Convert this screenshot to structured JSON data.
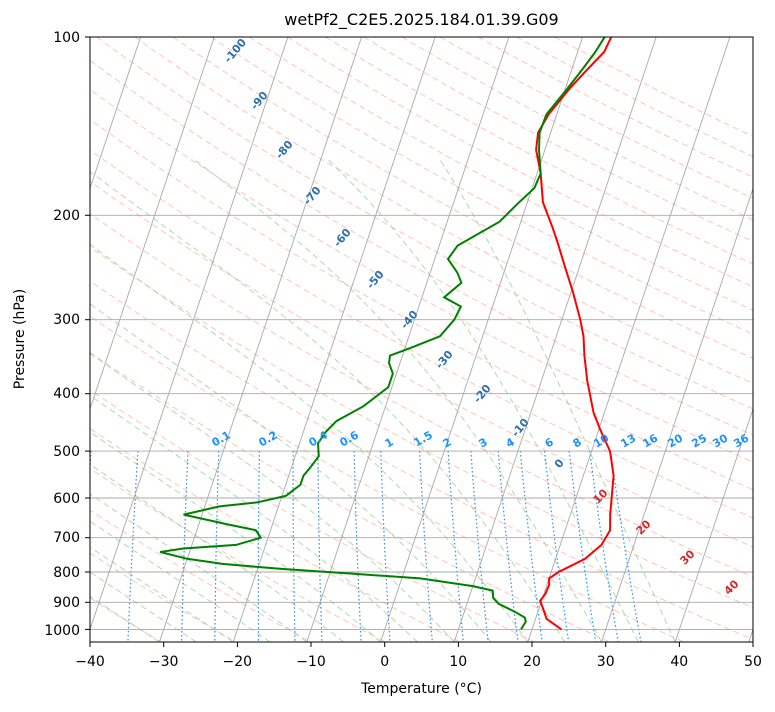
{
  "colors": {
    "temperature": "#ff0000",
    "dewpoint": "#008000",
    "isotherm": "#a9a9a9",
    "isobar": "#a9a9a9",
    "dry_adiabat": "#ff9f80",
    "moist_adiabat": "#90c990",
    "mixing_ratio": "#1e90ff",
    "dry_label": "#2b6fb0",
    "moist_label": "#d62728"
  },
  "chart_data": {
    "type": "line",
    "title": "wetPf2_C2E5.2025.184.01.39.G09",
    "xlabel": "Temperature (°C)",
    "ylabel": "Pressure (hPa)",
    "xlim": [
      -40,
      50
    ],
    "ylim": [
      1050,
      100
    ],
    "y_scale": "log",
    "grid": true,
    "x_ticks": [
      "−40",
      "−30",
      "−20",
      "−10",
      "0",
      "10",
      "20",
      "30",
      "40",
      "50"
    ],
    "y_ticks": [
      "100",
      "200",
      "300",
      "400",
      "500",
      "600",
      "700",
      "800",
      "900",
      "1000"
    ],
    "series": [
      {
        "key": "temperature",
        "points": [
          [
            24,
            1000
          ],
          [
            21.5,
            960
          ],
          [
            20.5,
            920
          ],
          [
            19.8,
            895
          ],
          [
            20.2,
            870
          ],
          [
            20.3,
            840
          ],
          [
            20,
            820
          ],
          [
            21,
            800
          ],
          [
            24,
            760
          ],
          [
            25.6,
            720
          ],
          [
            26.1,
            680
          ],
          [
            25.4,
            640
          ],
          [
            24.7,
            590
          ],
          [
            24.1,
            550
          ],
          [
            22.5,
            500
          ],
          [
            20.2,
            460
          ],
          [
            18.5,
            430
          ],
          [
            16.2,
            380
          ],
          [
            14.7,
            345
          ],
          [
            13.7,
            320
          ],
          [
            12.5,
            300
          ],
          [
            10.3,
            270
          ],
          [
            8.1,
            245
          ],
          [
            5.9,
            222
          ],
          [
            4.6,
            210
          ],
          [
            2.1,
            190
          ],
          [
            0.5,
            170
          ],
          [
            -1.2,
            155
          ],
          [
            -1.7,
            145
          ],
          [
            -1.1,
            135
          ],
          [
            0.6,
            122
          ],
          [
            2.2,
            113
          ],
          [
            3.6,
            106
          ],
          [
            3.9,
            100
          ]
        ]
      },
      {
        "key": "dewpoint",
        "points": [
          [
            18.5,
            1000
          ],
          [
            18.8,
            970
          ],
          [
            18.5,
            955
          ],
          [
            17,
            935
          ],
          [
            14.3,
            905
          ],
          [
            13.3,
            885
          ],
          [
            12.9,
            860
          ],
          [
            10,
            845
          ],
          [
            2.5,
            820
          ],
          [
            -7,
            805
          ],
          [
            -17,
            790
          ],
          [
            -25,
            775
          ],
          [
            -30,
            760
          ],
          [
            -34,
            740
          ],
          [
            -31,
            730
          ],
          [
            -24,
            720
          ],
          [
            -21,
            700
          ],
          [
            -22,
            680
          ],
          [
            -26,
            665
          ],
          [
            -32.5,
            640
          ],
          [
            -28,
            620
          ],
          [
            -23,
            610
          ],
          [
            -19.5,
            595
          ],
          [
            -18,
            570
          ],
          [
            -18,
            550
          ],
          [
            -17.5,
            535
          ],
          [
            -16.8,
            510
          ],
          [
            -17.5,
            485
          ],
          [
            -17,
            465
          ],
          [
            -16,
            445
          ],
          [
            -13,
            420
          ],
          [
            -10.5,
            390
          ],
          [
            -10.5,
            370
          ],
          [
            -11.5,
            355
          ],
          [
            -11.7,
            345
          ],
          [
            -9.3,
            335
          ],
          [
            -5.8,
            320
          ],
          [
            -4.6,
            300
          ],
          [
            -4.3,
            285
          ],
          [
            -7,
            275
          ],
          [
            -5.3,
            260
          ],
          [
            -6.3,
            250
          ],
          [
            -8.2,
            237
          ],
          [
            -7.5,
            225
          ],
          [
            -2.9,
            205
          ],
          [
            -1.1,
            190
          ],
          [
            0.3,
            180
          ],
          [
            0.5,
            170
          ],
          [
            -0.8,
            155
          ],
          [
            -1.5,
            145
          ],
          [
            -1.4,
            135
          ],
          [
            0.3,
            122
          ],
          [
            1.5,
            113
          ],
          [
            2.4,
            106
          ],
          [
            3,
            100
          ]
        ]
      }
    ],
    "dry_adiabat_labels": [
      "-100",
      "-90",
      "-80",
      "-70",
      "-60",
      "-50",
      "-40",
      "-30",
      "-20",
      "-10",
      "0"
    ],
    "moist_adiabat_labels": [
      "10",
      "20",
      "30",
      "40"
    ],
    "mixing_ratio_labels": [
      "0.1",
      "0.2",
      "0.4",
      "0.6",
      "1",
      "1.5",
      "2",
      "3",
      "4",
      "6",
      "8",
      "10",
      "13",
      "16",
      "20",
      "25",
      "30",
      "36"
    ]
  }
}
